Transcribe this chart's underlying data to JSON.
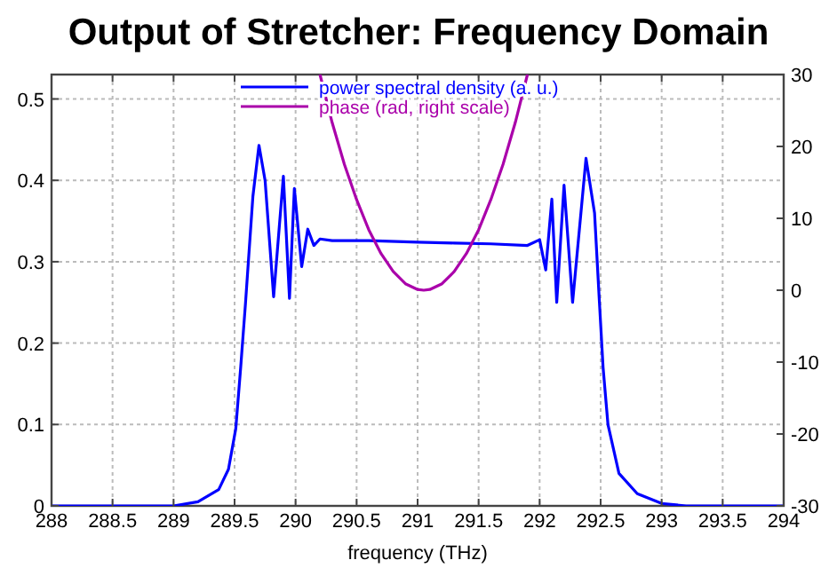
{
  "chart_data": {
    "type": "line",
    "title": "Output of Stretcher: Frequency Domain",
    "xlabel": "frequency (THz)",
    "xlim": [
      288,
      294
    ],
    "xticks": [
      288,
      288.5,
      289,
      289.5,
      290,
      290.5,
      291,
      291.5,
      292,
      292.5,
      293,
      293.5,
      294
    ],
    "ylim": [
      0,
      0.53
    ],
    "yticks": [
      0,
      0.1,
      0.2,
      0.3,
      0.4,
      0.5
    ],
    "y2lim": [
      -30,
      30
    ],
    "y2ticks": [
      -30,
      -20,
      -10,
      0,
      10,
      20,
      30
    ],
    "grid": true,
    "legend": "top",
    "line_style": "solid",
    "series": [
      {
        "name": "power spectral density (a. u.)",
        "color": "#0000ff",
        "x": [
          288,
          289,
          289.2,
          289.37,
          289.45,
          289.51,
          289.55,
          289.59,
          289.65,
          289.7,
          289.75,
          289.82,
          289.9,
          289.95,
          289.99,
          290.05,
          290.1,
          290.15,
          290.2,
          290.3,
          290.6,
          291,
          291.3,
          291.6,
          291.9,
          292.0,
          292.05,
          292.1,
          292.14,
          292.2,
          292.27,
          292.38,
          292.45,
          292.49,
          292.52,
          292.56,
          292.65,
          292.8,
          293,
          293.2,
          294
        ],
        "values": [
          0,
          0,
          0.005,
          0.02,
          0.045,
          0.095,
          0.17,
          0.25,
          0.38,
          0.443,
          0.4,
          0.257,
          0.405,
          0.255,
          0.39,
          0.294,
          0.34,
          0.32,
          0.328,
          0.326,
          0.326,
          0.324,
          0.323,
          0.322,
          0.32,
          0.327,
          0.29,
          0.377,
          0.25,
          0.394,
          0.25,
          0.427,
          0.36,
          0.25,
          0.17,
          0.1,
          0.04,
          0.015,
          0.003,
          0,
          0
        ]
      },
      {
        "name": "phase (rad, right scale)",
        "color": "#aa00aa",
        "axis": "y2",
        "x": [
          290.2,
          290.3,
          290.4,
          290.5,
          290.6,
          290.7,
          290.8,
          290.9,
          291.0,
          291.05,
          291.1,
          291.2,
          291.3,
          291.4,
          291.5,
          291.6,
          291.7,
          291.8,
          291.9
        ],
        "values": [
          30,
          23.3,
          17.5,
          12.6,
          8.4,
          5.1,
          2.6,
          0.9,
          0.1,
          0,
          0.1,
          0.9,
          2.6,
          5.1,
          8.4,
          12.6,
          17.5,
          23.3,
          30
        ]
      }
    ]
  }
}
